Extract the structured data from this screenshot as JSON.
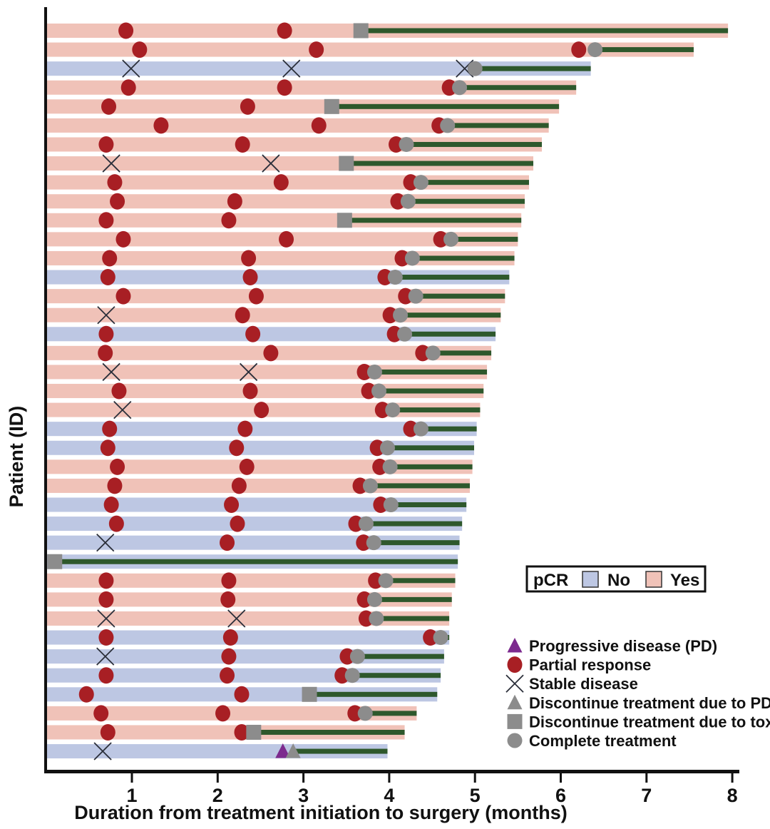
{
  "axes": {
    "x": {
      "label": "Duration from treatment initiation to surgery (months)",
      "ticks": [
        1,
        2,
        3,
        4,
        5,
        6,
        7,
        8
      ],
      "range": [
        0,
        8.07
      ]
    },
    "y": {
      "label": "Patient (ID)",
      "tick_labels_shown": false
    }
  },
  "pcr_legend": {
    "title": "pCR",
    "no_label": "No",
    "yes_label": "Yes"
  },
  "marker_legend": [
    {
      "type": "pd",
      "label": "Progressive disease (PD)"
    },
    {
      "type": "pr",
      "label": "Partial response"
    },
    {
      "type": "sd",
      "label": "Stable disease"
    },
    {
      "type": "disc_pd",
      "label": "Discontinue treatment due to PD"
    },
    {
      "type": "tox",
      "label": "Discontinue treatment due to toxicity"
    },
    {
      "type": "comp",
      "label": "Complete treatment"
    }
  ],
  "colors": {
    "pcr_no": "#bdc7e3",
    "pcr_yes": "#f0c2b8",
    "partial_response": "#a81f24",
    "treatment_line": "#2e582c",
    "gray_marker": "#8c8c8c",
    "progressive_disease": "#7c2a8e",
    "stable_disease_x": "#2b2f3a",
    "axis": "#111111"
  },
  "chart_data": {
    "type": "bar",
    "subtype": "swimmer",
    "title": "",
    "xlabel": "Duration from treatment initiation to surgery (months)",
    "ylabel": "Patient (ID)",
    "xlim": [
      0,
      8.07
    ],
    "event_types": {
      "pr": "partial response (red circle)",
      "sd": "stable disease (x)",
      "pd": "progressive disease (purple triangle)",
      "disc_pd": "discontinue treatment due to PD (gray triangle)",
      "tox": "discontinue treatment due to toxicity (gray square)",
      "comp": "complete treatment (gray circle)"
    },
    "patients": [
      {
        "pcr": "Yes",
        "surgery": 7.95,
        "treatment_end": 3.67,
        "events": [
          [
            "pr",
            0.93
          ],
          [
            "pr",
            2.78
          ],
          [
            "tox",
            3.67
          ]
        ]
      },
      {
        "pcr": "Yes",
        "surgery": 7.55,
        "treatment_end": 6.4,
        "events": [
          [
            "pr",
            1.09
          ],
          [
            "pr",
            3.15
          ],
          [
            "pr",
            6.21
          ],
          [
            "comp",
            6.4
          ]
        ]
      },
      {
        "pcr": "No",
        "surgery": 6.35,
        "treatment_end": 5.0,
        "events": [
          [
            "sd",
            0.99
          ],
          [
            "sd",
            2.86
          ],
          [
            "sd",
            4.88
          ],
          [
            "comp",
            5.0
          ]
        ]
      },
      {
        "pcr": "Yes",
        "surgery": 6.18,
        "treatment_end": 4.82,
        "events": [
          [
            "pr",
            0.96
          ],
          [
            "pr",
            2.78
          ],
          [
            "pr",
            4.7
          ],
          [
            "comp",
            4.82
          ]
        ]
      },
      {
        "pcr": "Yes",
        "surgery": 5.98,
        "treatment_end": 3.33,
        "events": [
          [
            "pr",
            0.73
          ],
          [
            "pr",
            2.35
          ],
          [
            "tox",
            3.33
          ]
        ]
      },
      {
        "pcr": "Yes",
        "surgery": 5.86,
        "treatment_end": 4.68,
        "events": [
          [
            "pr",
            1.34
          ],
          [
            "pr",
            3.18
          ],
          [
            "pr",
            4.58
          ],
          [
            "comp",
            4.68
          ]
        ]
      },
      {
        "pcr": "Yes",
        "surgery": 5.78,
        "treatment_end": 4.2,
        "events": [
          [
            "pr",
            0.7
          ],
          [
            "pr",
            2.29
          ],
          [
            "pr",
            4.08
          ],
          [
            "comp",
            4.2
          ]
        ]
      },
      {
        "pcr": "Yes",
        "surgery": 5.68,
        "treatment_end": 3.5,
        "events": [
          [
            "sd",
            0.76
          ],
          [
            "sd",
            2.62
          ],
          [
            "tox",
            3.5
          ]
        ]
      },
      {
        "pcr": "Yes",
        "surgery": 5.63,
        "treatment_end": 4.37,
        "events": [
          [
            "pr",
            0.8
          ],
          [
            "pr",
            2.74
          ],
          [
            "pr",
            4.25
          ],
          [
            "comp",
            4.37
          ]
        ]
      },
      {
        "pcr": "Yes",
        "surgery": 5.58,
        "treatment_end": 4.22,
        "events": [
          [
            "pr",
            0.83
          ],
          [
            "pr",
            2.2
          ],
          [
            "pr",
            4.1
          ],
          [
            "comp",
            4.22
          ]
        ]
      },
      {
        "pcr": "Yes",
        "surgery": 5.54,
        "treatment_end": 3.48,
        "events": [
          [
            "pr",
            0.7
          ],
          [
            "pr",
            2.13
          ],
          [
            "tox",
            3.48
          ]
        ]
      },
      {
        "pcr": "Yes",
        "surgery": 5.5,
        "treatment_end": 4.72,
        "events": [
          [
            "pr",
            0.9
          ],
          [
            "pr",
            2.8
          ],
          [
            "pr",
            4.6
          ],
          [
            "comp",
            4.72
          ]
        ]
      },
      {
        "pcr": "Yes",
        "surgery": 5.46,
        "treatment_end": 4.27,
        "events": [
          [
            "pr",
            0.74
          ],
          [
            "pr",
            2.36
          ],
          [
            "pr",
            4.15
          ],
          [
            "comp",
            4.27
          ]
        ]
      },
      {
        "pcr": "No",
        "surgery": 5.4,
        "treatment_end": 4.07,
        "events": [
          [
            "pr",
            0.72
          ],
          [
            "pr",
            2.38
          ],
          [
            "pr",
            3.95
          ],
          [
            "comp",
            4.07
          ]
        ]
      },
      {
        "pcr": "Yes",
        "surgery": 5.35,
        "treatment_end": 4.31,
        "events": [
          [
            "pr",
            0.9
          ],
          [
            "pr",
            2.45
          ],
          [
            "pr",
            4.19
          ],
          [
            "comp",
            4.31
          ]
        ]
      },
      {
        "pcr": "Yes",
        "surgery": 5.3,
        "treatment_end": 4.13,
        "events": [
          [
            "sd",
            0.7
          ],
          [
            "pr",
            2.29
          ],
          [
            "pr",
            4.01
          ],
          [
            "comp",
            4.13
          ]
        ]
      },
      {
        "pcr": "No",
        "surgery": 5.24,
        "treatment_end": 4.18,
        "events": [
          [
            "pr",
            0.7
          ],
          [
            "pr",
            2.41
          ],
          [
            "pr",
            4.06
          ],
          [
            "comp",
            4.18
          ]
        ]
      },
      {
        "pcr": "Yes",
        "surgery": 5.19,
        "treatment_end": 4.51,
        "events": [
          [
            "pr",
            0.69
          ],
          [
            "pr",
            2.62
          ],
          [
            "pr",
            4.39
          ],
          [
            "comp",
            4.51
          ]
        ]
      },
      {
        "pcr": "Yes",
        "surgery": 5.14,
        "treatment_end": 3.83,
        "events": [
          [
            "sd",
            0.76
          ],
          [
            "sd",
            2.36
          ],
          [
            "pr",
            3.71
          ],
          [
            "comp",
            3.83
          ]
        ]
      },
      {
        "pcr": "Yes",
        "surgery": 5.1,
        "treatment_end": 3.88,
        "events": [
          [
            "pr",
            0.85
          ],
          [
            "pr",
            2.38
          ],
          [
            "pr",
            3.76
          ],
          [
            "comp",
            3.88
          ]
        ]
      },
      {
        "pcr": "Yes",
        "surgery": 5.06,
        "treatment_end": 4.04,
        "events": [
          [
            "sd",
            0.89
          ],
          [
            "pr",
            2.51
          ],
          [
            "pr",
            3.92
          ],
          [
            "comp",
            4.04
          ]
        ]
      },
      {
        "pcr": "No",
        "surgery": 5.02,
        "treatment_end": 4.37,
        "events": [
          [
            "pr",
            0.74
          ],
          [
            "pr",
            2.32
          ],
          [
            "pr",
            4.25
          ],
          [
            "comp",
            4.37
          ]
        ]
      },
      {
        "pcr": "No",
        "surgery": 4.99,
        "treatment_end": 3.98,
        "events": [
          [
            "pr",
            0.72
          ],
          [
            "pr",
            2.22
          ],
          [
            "pr",
            3.86
          ],
          [
            "comp",
            3.98
          ]
        ]
      },
      {
        "pcr": "Yes",
        "surgery": 4.97,
        "treatment_end": 4.01,
        "events": [
          [
            "pr",
            0.83
          ],
          [
            "pr",
            2.34
          ],
          [
            "pr",
            3.89
          ],
          [
            "comp",
            4.01
          ]
        ]
      },
      {
        "pcr": "Yes",
        "surgery": 4.94,
        "treatment_end": 3.78,
        "events": [
          [
            "pr",
            0.8
          ],
          [
            "pr",
            2.25
          ],
          [
            "pr",
            3.66
          ],
          [
            "comp",
            3.78
          ]
        ]
      },
      {
        "pcr": "No",
        "surgery": 4.9,
        "treatment_end": 4.02,
        "events": [
          [
            "pr",
            0.76
          ],
          [
            "pr",
            2.16
          ],
          [
            "pr",
            3.9
          ],
          [
            "comp",
            4.02
          ]
        ]
      },
      {
        "pcr": "No",
        "surgery": 4.85,
        "treatment_end": 3.73,
        "events": [
          [
            "pr",
            0.82
          ],
          [
            "pr",
            2.23
          ],
          [
            "pr",
            3.61
          ],
          [
            "comp",
            3.73
          ]
        ]
      },
      {
        "pcr": "No",
        "surgery": 4.82,
        "treatment_end": 3.82,
        "events": [
          [
            "sd",
            0.69
          ],
          [
            "pr",
            2.11
          ],
          [
            "pr",
            3.7
          ],
          [
            "comp",
            3.82
          ]
        ]
      },
      {
        "pcr": "No",
        "surgery": 4.8,
        "treatment_end": 0.1,
        "events": [
          [
            "tox",
            0.1
          ]
        ]
      },
      {
        "pcr": "Yes",
        "surgery": 4.77,
        "treatment_end": 3.96,
        "events": [
          [
            "pr",
            0.7
          ],
          [
            "pr",
            2.13
          ],
          [
            "pr",
            3.84
          ],
          [
            "comp",
            3.96
          ]
        ]
      },
      {
        "pcr": "Yes",
        "surgery": 4.73,
        "treatment_end": 3.83,
        "events": [
          [
            "pr",
            0.7
          ],
          [
            "pr",
            2.12
          ],
          [
            "pr",
            3.71
          ],
          [
            "comp",
            3.83
          ]
        ]
      },
      {
        "pcr": "Yes",
        "surgery": 4.7,
        "treatment_end": 3.85,
        "events": [
          [
            "sd",
            0.7
          ],
          [
            "sd",
            2.22
          ],
          [
            "pr",
            3.73
          ],
          [
            "comp",
            3.85
          ]
        ]
      },
      {
        "pcr": "No",
        "surgery": 4.7,
        "treatment_end": 4.6,
        "events": [
          [
            "pr",
            0.7
          ],
          [
            "pr",
            2.15
          ],
          [
            "pr",
            4.48
          ],
          [
            "comp",
            4.6
          ]
        ]
      },
      {
        "pcr": "No",
        "surgery": 4.64,
        "treatment_end": 3.63,
        "events": [
          [
            "sd",
            0.69
          ],
          [
            "pr",
            2.13
          ],
          [
            "pr",
            3.51
          ],
          [
            "comp",
            3.63
          ]
        ]
      },
      {
        "pcr": "No",
        "surgery": 4.6,
        "treatment_end": 3.57,
        "events": [
          [
            "pr",
            0.7
          ],
          [
            "pr",
            2.11
          ],
          [
            "pr",
            3.45
          ],
          [
            "comp",
            3.57
          ]
        ]
      },
      {
        "pcr": "No",
        "surgery": 4.56,
        "treatment_end": 3.07,
        "events": [
          [
            "pr",
            0.47
          ],
          [
            "pr",
            2.28
          ],
          [
            "tox",
            3.07
          ]
        ]
      },
      {
        "pcr": "Yes",
        "surgery": 4.32,
        "treatment_end": 3.72,
        "events": [
          [
            "pr",
            0.64
          ],
          [
            "pr",
            2.06
          ],
          [
            "pr",
            3.6
          ],
          [
            "comp",
            3.72
          ]
        ]
      },
      {
        "pcr": "Yes",
        "surgery": 4.18,
        "treatment_end": 2.42,
        "events": [
          [
            "pr",
            0.72
          ],
          [
            "pr",
            2.28
          ],
          [
            "tox",
            2.42
          ]
        ]
      },
      {
        "pcr": "No",
        "surgery": 3.98,
        "treatment_end": 2.88,
        "events": [
          [
            "sd",
            0.66
          ],
          [
            "pd",
            2.76
          ],
          [
            "disc_pd",
            2.88
          ]
        ]
      }
    ]
  }
}
